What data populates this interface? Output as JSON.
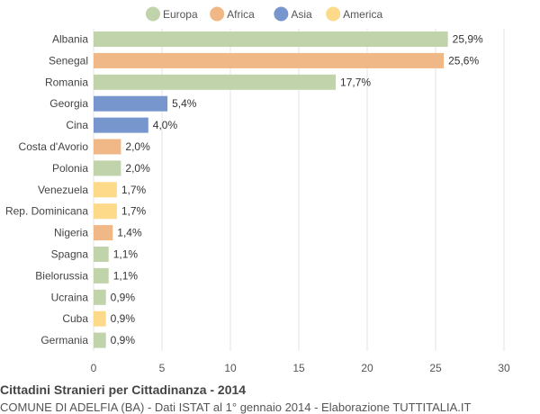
{
  "title": "Cittadini Stranieri per Cittadinanza - 2014",
  "subtitle": "COMUNE DI ADELFIA (BA) - Dati ISTAT al 1° gennaio 2014 - Elaborazione TUTTITALIA.IT",
  "chart_data": {
    "type": "bar",
    "orientation": "horizontal",
    "categories": [
      "Albania",
      "Senegal",
      "Romania",
      "Georgia",
      "Cina",
      "Costa d'Avorio",
      "Polonia",
      "Venezuela",
      "Rep. Dominicana",
      "Nigeria",
      "Spagna",
      "Bielorussia",
      "Ucraina",
      "Cuba",
      "Germania"
    ],
    "values": [
      25.9,
      25.6,
      17.7,
      5.4,
      4.0,
      2.0,
      2.0,
      1.7,
      1.7,
      1.4,
      1.1,
      1.1,
      0.9,
      0.9,
      0.9
    ],
    "value_labels": [
      "25,9%",
      "25,6%",
      "17,7%",
      "5,4%",
      "4,0%",
      "2,0%",
      "2,0%",
      "1,7%",
      "1,7%",
      "1,4%",
      "1,1%",
      "1,1%",
      "0,9%",
      "0,9%",
      "0,9%"
    ],
    "groups": [
      "Europa",
      "Africa",
      "Europa",
      "Asia",
      "Asia",
      "Africa",
      "Europa",
      "America",
      "America",
      "Africa",
      "Europa",
      "Europa",
      "Europa",
      "America",
      "Europa"
    ],
    "legend": [
      {
        "name": "Europa",
        "color": "#c0d3aa"
      },
      {
        "name": "Africa",
        "color": "#f0b886"
      },
      {
        "name": "Asia",
        "color": "#7896ce"
      },
      {
        "name": "America",
        "color": "#fdd98a"
      }
    ],
    "legend_position": "top",
    "xlim": [
      0,
      30
    ],
    "xticks": [
      0,
      5,
      10,
      15,
      20,
      25,
      30
    ],
    "grid": true
  }
}
